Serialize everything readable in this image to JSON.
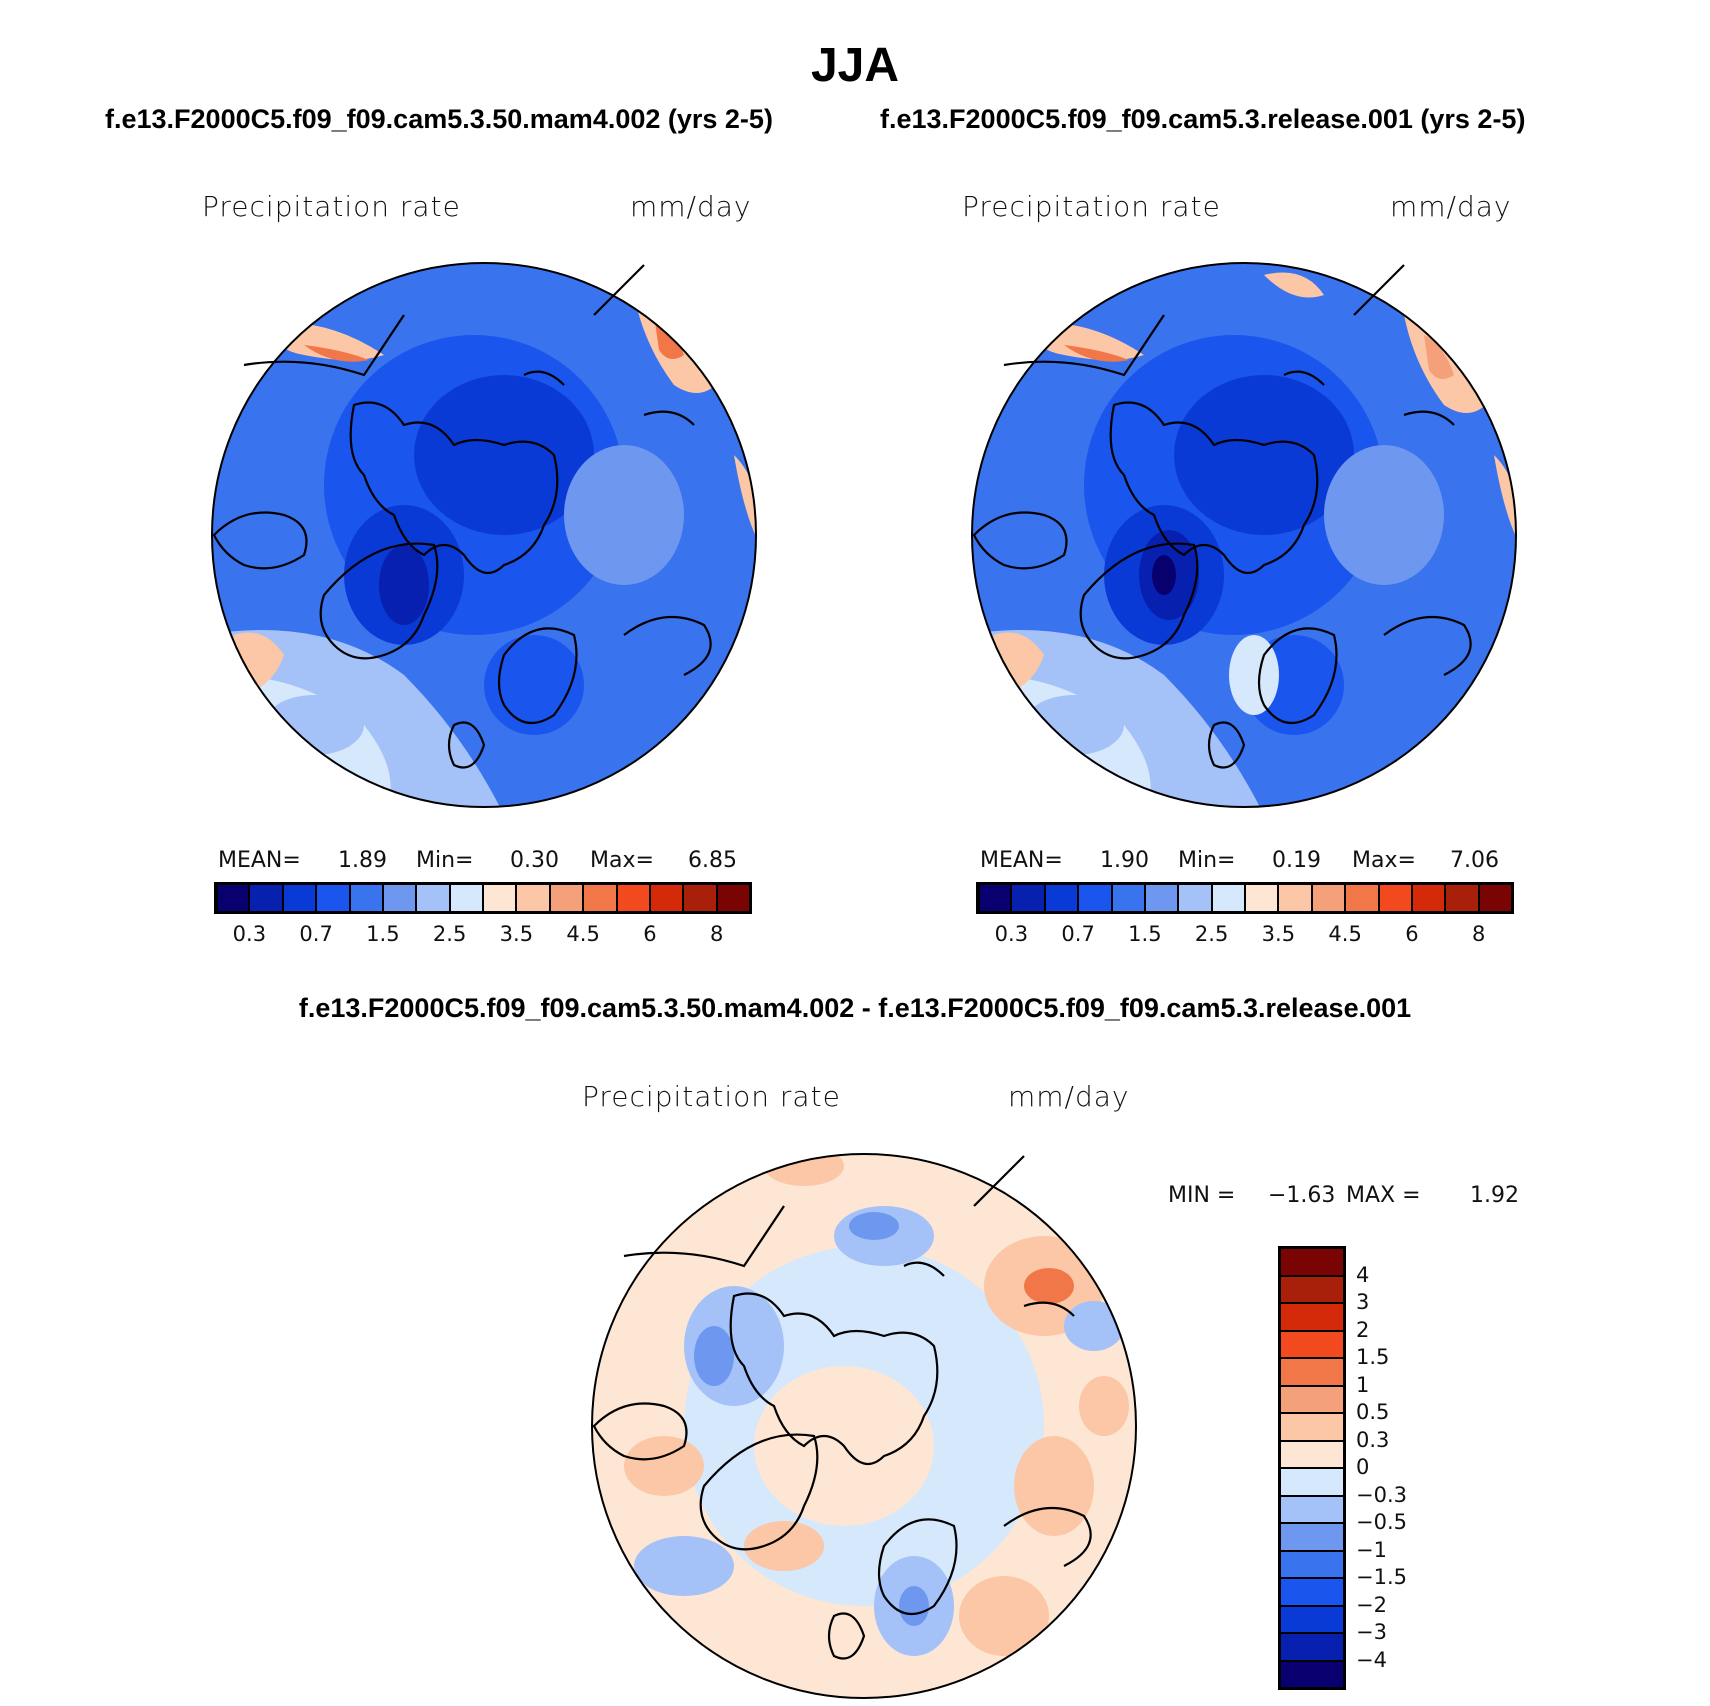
{
  "title": "JJA",
  "left_case": "f.e13.F2000C5.f09_f09.cam5.3.50.mam4.002 (yrs 2-5)",
  "right_case": "f.e13.F2000C5.f09_f09.cam5.3.release.001 (yrs 2-5)",
  "diff_title": "f.e13.F2000C5.f09_f09.cam5.3.50.mam4.002 - f.e13.F2000C5.f09_f09.cam5.3.release.001",
  "panels": {
    "left": {
      "variable": "Precipitation rate",
      "units": "mm/day",
      "mean_label": "MEAN=",
      "mean": "1.89",
      "min_label": "Min=",
      "min": "0.30",
      "max_label": "Max=",
      "max": "6.85"
    },
    "right": {
      "variable": "Precipitation rate",
      "units": "mm/day",
      "mean_label": "MEAN=",
      "mean": "1.90",
      "min_label": "Min=",
      "min": "0.19",
      "max_label": "Max=",
      "max": "7.06"
    },
    "diff": {
      "variable": "Precipitation rate",
      "units": "mm/day",
      "min_label": "MIN =",
      "min": "−1.63",
      "max_label": "MAX =",
      "max": "1.92"
    }
  },
  "chart_data": [
    {
      "type": "map",
      "projection": "north polar stereographic",
      "title": "Precipitation rate (mm/day) — mam4.002",
      "colorbar": {
        "orientation": "horizontal",
        "colors": [
          "#08006e",
          "#0820b0",
          "#0a3ad6",
          "#1a55ee",
          "#3a73ee",
          "#6e98f0",
          "#a4c1f8",
          "#d6e8fb",
          "#fde6d4",
          "#fbc7a6",
          "#f4a07a",
          "#f27748",
          "#f24a1e",
          "#d42a0a",
          "#a8200a",
          "#7a0404"
        ],
        "tick_labels": [
          "0.3",
          "0.7",
          "1.5",
          "2.5",
          "3.5",
          "4.5",
          "6",
          "8"
        ]
      },
      "stats": {
        "mean": 1.89,
        "min": 0.3,
        "max": 6.85
      }
    },
    {
      "type": "map",
      "projection": "north polar stereographic",
      "title": "Precipitation rate (mm/day) — release.001",
      "colorbar": {
        "orientation": "horizontal",
        "colors": [
          "#08006e",
          "#0820b0",
          "#0a3ad6",
          "#1a55ee",
          "#3a73ee",
          "#6e98f0",
          "#a4c1f8",
          "#d6e8fb",
          "#fde6d4",
          "#fbc7a6",
          "#f4a07a",
          "#f27748",
          "#f24a1e",
          "#d42a0a",
          "#a8200a",
          "#7a0404"
        ],
        "tick_labels": [
          "0.3",
          "0.7",
          "1.5",
          "2.5",
          "3.5",
          "4.5",
          "6",
          "8"
        ]
      },
      "stats": {
        "mean": 1.9,
        "min": 0.19,
        "max": 7.06
      }
    },
    {
      "type": "map",
      "projection": "north polar stereographic",
      "title": "Precipitation rate (mm/day) — difference",
      "colorbar": {
        "orientation": "vertical",
        "colors_top_to_bottom": [
          "#7a0404",
          "#a8200a",
          "#d42a0a",
          "#f24a1e",
          "#f27748",
          "#f4a07a",
          "#fbc7a6",
          "#fde6d4",
          "#d6e8fb",
          "#a4c1f8",
          "#6e98f0",
          "#3a73ee",
          "#1a55ee",
          "#0a3ad6",
          "#0820b0",
          "#08006e"
        ],
        "tick_labels_top_to_bottom": [
          "4",
          "3",
          "2",
          "1.5",
          "1",
          "0.5",
          "0.3",
          "0",
          "−0.3",
          "−0.5",
          "−1",
          "−1.5",
          "−2",
          "−3",
          "−4"
        ]
      },
      "stats": {
        "min": -1.63,
        "max": 1.92
      }
    }
  ]
}
